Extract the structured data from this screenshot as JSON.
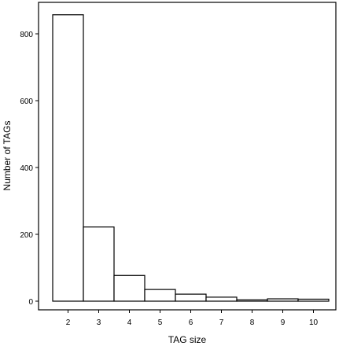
{
  "chart_data": {
    "type": "bar",
    "categories": [
      "2",
      "3",
      "4",
      "5",
      "6",
      "7",
      "8",
      "9",
      "10"
    ],
    "values": [
      857,
      222,
      77,
      35,
      21,
      12,
      4,
      7,
      6
    ],
    "xlabel": "TAG size",
    "ylabel": "Number of TAGs",
    "ylim": [
      -20,
      900
    ],
    "yticks": [
      0,
      200,
      400,
      600,
      800
    ],
    "grid": false,
    "legend": "none",
    "bar_fill": "#ffffff",
    "bar_stroke": "#000000"
  }
}
